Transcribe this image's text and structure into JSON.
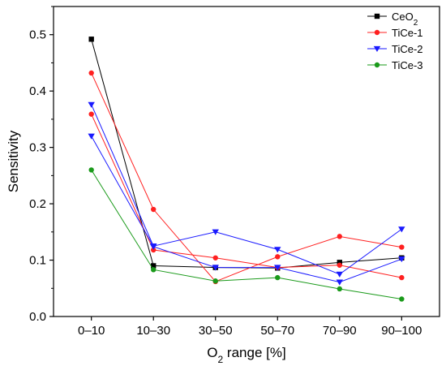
{
  "chart_data": {
    "type": "line",
    "title": "",
    "xlabel": "O2 range [%]",
    "xlabel_parts": [
      "O",
      "2",
      " range [%]"
    ],
    "ylabel": "Sensitivity",
    "categories": [
      "0–10",
      "10–30",
      "30–50",
      "50–70",
      "70–90",
      "90–100"
    ],
    "ylim": [
      0,
      0.55
    ],
    "yticks": [
      "0.0",
      "0.1",
      "0.2",
      "0.3",
      "0.4",
      "0.5"
    ],
    "grid": false,
    "legend_position": "top-right",
    "series": [
      {
        "name": "CeO2",
        "name_parts": [
          "CeO",
          "2"
        ],
        "color": "#000000",
        "marker": "square",
        "lines": [
          [
            [
              0,
              0.492
            ],
            [
              1,
              0.09
            ],
            [
              2,
              0.087
            ],
            [
              3,
              0.086
            ],
            [
              4,
              0.096
            ],
            [
              5,
              0.104
            ]
          ]
        ]
      },
      {
        "name": "TiCe-1",
        "name_parts": [
          "TiCe-1",
          ""
        ],
        "color": "#ff2020",
        "marker": "circle",
        "lines": [
          [
            [
              0,
              0.432
            ],
            [
              1,
              0.19
            ],
            [
              2,
              0.062
            ],
            [
              3,
              0.106
            ],
            [
              4,
              0.142
            ],
            [
              5,
              0.123
            ]
          ],
          [
            [
              0,
              0.359
            ],
            [
              1,
              0.118
            ],
            [
              2,
              0.104
            ],
            [
              3,
              0.087
            ],
            [
              4,
              0.091
            ],
            [
              5,
              0.069
            ]
          ]
        ]
      },
      {
        "name": "TiCe-2",
        "name_parts": [
          "TiCe-2",
          ""
        ],
        "color": "#1a1aff",
        "marker": "triangle-down",
        "lines": [
          [
            [
              0,
              0.376
            ],
            [
              1,
              0.125
            ],
            [
              2,
              0.15
            ],
            [
              3,
              0.119
            ],
            [
              4,
              0.075
            ],
            [
              5,
              0.155
            ]
          ],
          [
            [
              0,
              0.32
            ],
            [
              1,
              0.124
            ],
            [
              2,
              0.087
            ],
            [
              3,
              0.087
            ],
            [
              4,
              0.061
            ],
            [
              5,
              0.102
            ]
          ]
        ]
      },
      {
        "name": "TiCe-3",
        "name_parts": [
          "TiCe-3",
          ""
        ],
        "color": "#1a9a1a",
        "marker": "circle",
        "lines": [
          [
            [
              0,
              0.26
            ],
            [
              1,
              0.083
            ],
            [
              2,
              0.063
            ],
            [
              3,
              0.069
            ],
            [
              4,
              0.049
            ],
            [
              5,
              0.031
            ]
          ]
        ]
      }
    ]
  }
}
